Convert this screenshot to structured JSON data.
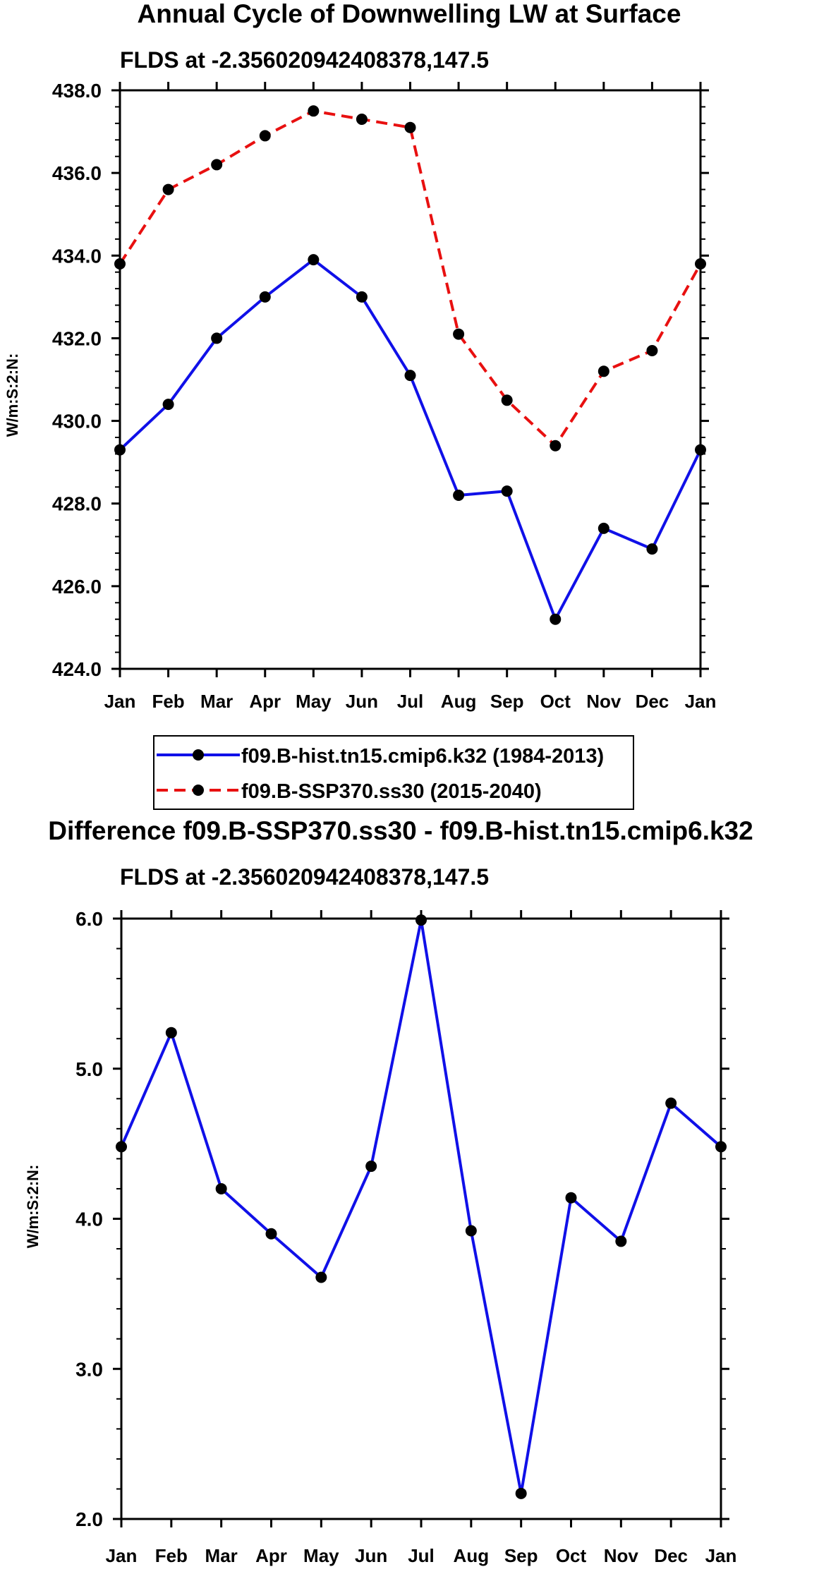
{
  "chart_data": [
    {
      "type": "line",
      "title": "Annual Cycle of Downwelling LW at Surface",
      "subtitle": "FLDS at -2.356020942408378,147.5",
      "xlabel": "",
      "ylabel": "W/m:S:2:N:",
      "categories": [
        "Jan",
        "Feb",
        "Mar",
        "Apr",
        "May",
        "Jun",
        "Jul",
        "Aug",
        "Sep",
        "Oct",
        "Nov",
        "Dec",
        "Jan"
      ],
      "yticks": [
        "424.0",
        "426.0",
        "428.0",
        "430.0",
        "432.0",
        "434.0",
        "436.0",
        "438.0"
      ],
      "ylim": [
        424.0,
        438.0
      ],
      "grid": false,
      "legend_position": "bottom",
      "series": [
        {
          "name": "f09.B-hist.tn15.cmip6.k32 (1984-2013)",
          "color": "#1010e8",
          "style": "solid",
          "values": [
            429.3,
            430.4,
            432.0,
            433.0,
            433.9,
            433.0,
            431.1,
            428.2,
            428.3,
            425.2,
            427.4,
            426.9,
            429.3
          ]
        },
        {
          "name": "f09.B-SSP370.ss30 (2015-2040)",
          "color": "#e81010",
          "style": "dashed",
          "values": [
            433.8,
            435.6,
            436.2,
            436.9,
            437.5,
            437.3,
            437.1,
            432.1,
            430.5,
            429.4,
            431.2,
            431.7,
            433.8
          ]
        }
      ]
    },
    {
      "type": "line",
      "title": "Difference f09.B-SSP370.ss30 - f09.B-hist.tn15.cmip6.k32",
      "subtitle": "FLDS at -2.356020942408378,147.5",
      "xlabel": "",
      "ylabel": "W/m:S:2:N:",
      "categories": [
        "Jan",
        "Feb",
        "Mar",
        "Apr",
        "May",
        "Jun",
        "Jul",
        "Aug",
        "Sep",
        "Oct",
        "Nov",
        "Dec",
        "Jan"
      ],
      "yticks": [
        "2.0",
        "3.0",
        "4.0",
        "5.0",
        "6.0"
      ],
      "ylim": [
        2.0,
        6.0
      ],
      "grid": false,
      "series": [
        {
          "name": "difference",
          "color": "#1010e8",
          "style": "solid",
          "values": [
            4.48,
            5.24,
            4.2,
            3.9,
            3.61,
            4.35,
            5.99,
            3.92,
            2.17,
            4.14,
            3.85,
            4.77,
            4.48
          ]
        }
      ]
    }
  ]
}
